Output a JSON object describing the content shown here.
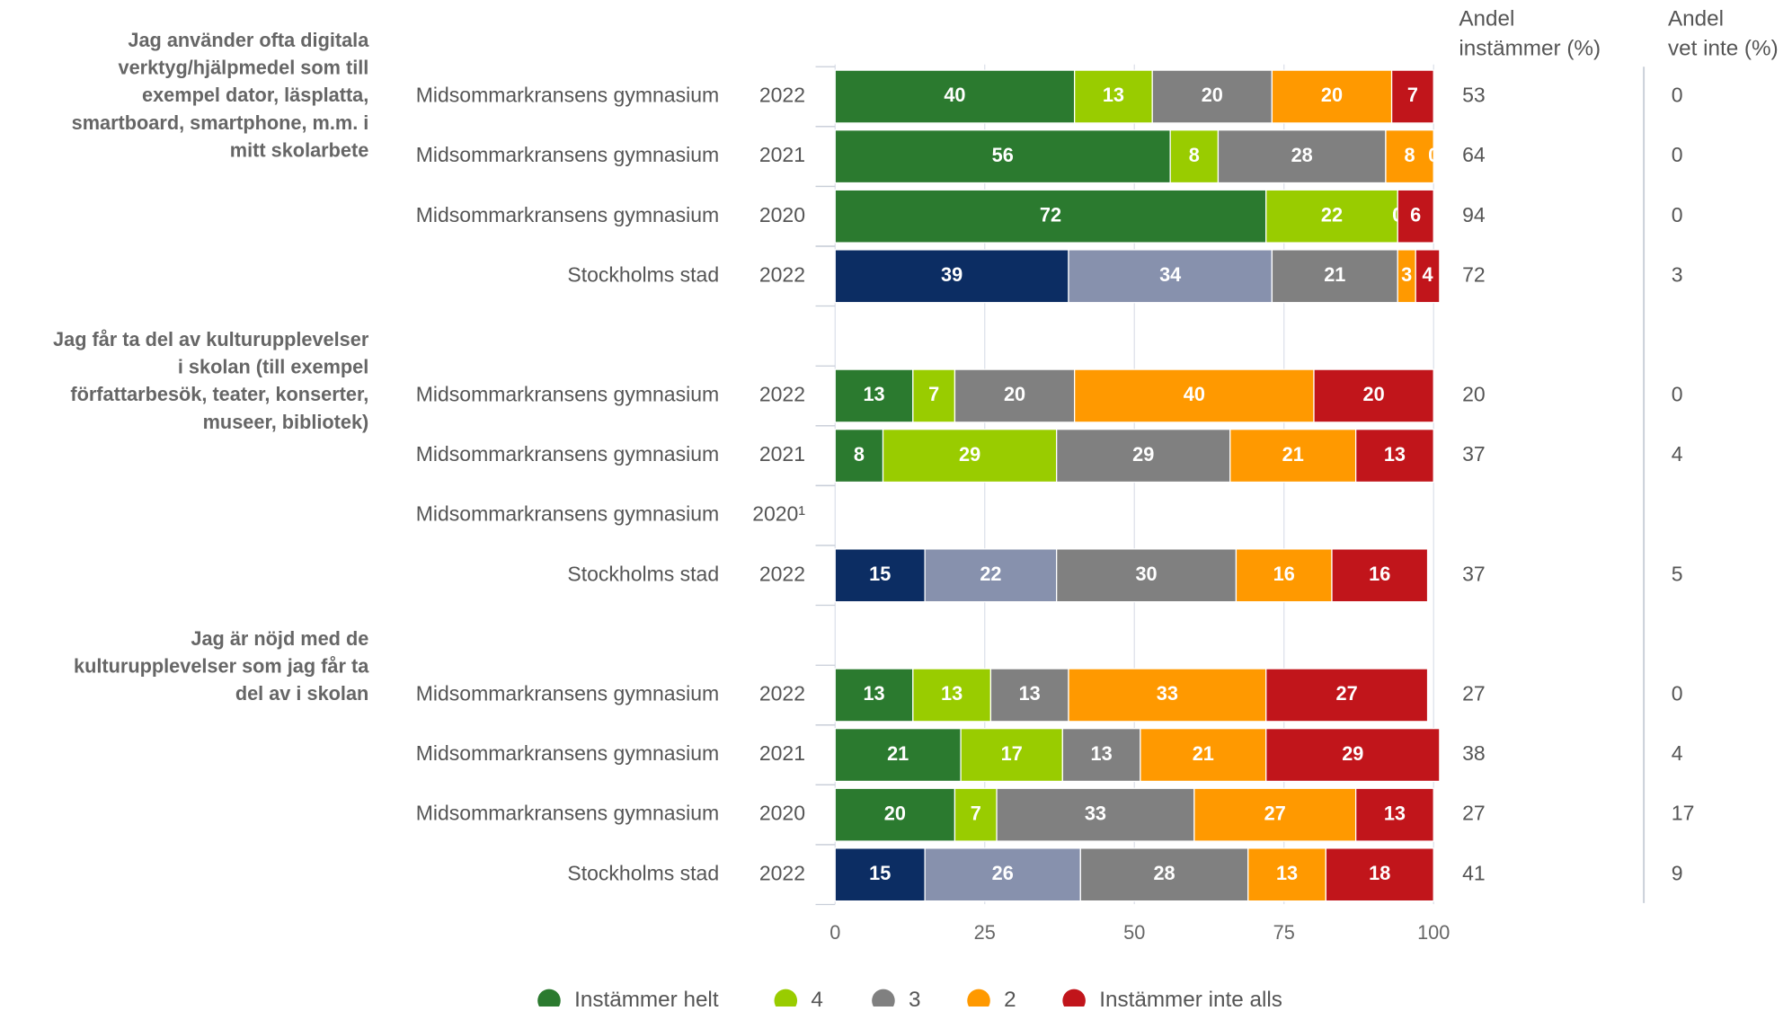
{
  "chart_data": {
    "type": "bar",
    "orientation": "horizontal",
    "stacked": true,
    "xlim": [
      0,
      100
    ],
    "xticks": [
      0,
      25,
      50,
      75,
      100
    ],
    "grid": true,
    "legend": "bottom",
    "column_headers": [
      [
        "Andel",
        "instämmer (%)"
      ],
      [
        "Andel",
        "vet inte (%)"
      ]
    ],
    "series": [
      {
        "name": "Instämmer helt",
        "color": "#2b7a2f"
      },
      {
        "name": "4",
        "color": "#99cc00"
      },
      {
        "name": "3",
        "color": "#808080"
      },
      {
        "name": "2",
        "color": "#ff9900"
      },
      {
        "name": "Instämmer inte alls",
        "color": "#c1151b"
      }
    ],
    "groups": [
      {
        "title": [
          "Jag använder ofta digitala",
          "verktyg/hjälpmedel som till",
          "exempel dator, läsplatta,",
          "smartboard, smartphone, m.m. i",
          "mitt skolarbete"
        ],
        "rows": [
          {
            "label": "Midsommarkransens gymnasium",
            "year": "2022",
            "values": [
              40,
              13,
              20,
              20,
              7
            ],
            "colors": [
              "#2b7a2f",
              "#99cc00",
              "#808080",
              "#ff9900",
              "#c1151b"
            ],
            "andel": 53,
            "vet_inte": 0
          },
          {
            "label": "Midsommarkransens gymnasium",
            "year": "2021",
            "values": [
              56,
              8,
              28,
              8,
              0
            ],
            "colors": [
              "#2b7a2f",
              "#99cc00",
              "#808080",
              "#ff9900",
              "#c1151b"
            ],
            "andel": 64,
            "vet_inte": 0
          },
          {
            "label": "Midsommarkransens gymnasium",
            "year": "2020",
            "values": [
              72,
              22,
              0,
              0,
              6
            ],
            "colors": [
              "#2b7a2f",
              "#99cc00",
              "#808080",
              "#ff9900",
              "#c1151b"
            ],
            "andel": 94,
            "vet_inte": 0
          },
          {
            "label": "Stockholms stad",
            "year": "2022",
            "values": [
              39,
              34,
              21,
              3,
              4
            ],
            "colors": [
              "#0c2d63",
              "#8791ad",
              "#808080",
              "#ff9900",
              "#c1151b"
            ],
            "andel": 72,
            "vet_inte": 3
          }
        ]
      },
      {
        "title": [
          "Jag får ta del av kulturupplevelser",
          "i skolan (till exempel",
          "författarbesök, teater, konserter,",
          "museer, bibliotek)"
        ],
        "rows": [
          {
            "label": "Midsommarkransens gymnasium",
            "year": "2022",
            "values": [
              13,
              7,
              20,
              40,
              20
            ],
            "colors": [
              "#2b7a2f",
              "#99cc00",
              "#808080",
              "#ff9900",
              "#c1151b"
            ],
            "andel": 20,
            "vet_inte": 0
          },
          {
            "label": "Midsommarkransens gymnasium",
            "year": "2021",
            "values": [
              8,
              29,
              29,
              21,
              13
            ],
            "colors": [
              "#2b7a2f",
              "#99cc00",
              "#808080",
              "#ff9900",
              "#c1151b"
            ],
            "andel": 37,
            "vet_inte": 4
          },
          {
            "label": "Midsommarkransens gymnasium",
            "year": "2020¹"
          },
          {
            "label": "Stockholms stad",
            "year": "2022",
            "values": [
              15,
              22,
              30,
              16,
              16
            ],
            "colors": [
              "#0c2d63",
              "#8791ad",
              "#808080",
              "#ff9900",
              "#c1151b"
            ],
            "andel": 37,
            "vet_inte": 5
          }
        ]
      },
      {
        "title": [
          "Jag är nöjd med de",
          "kulturupplevelser som jag får ta",
          "del av i skolan"
        ],
        "rows": [
          {
            "label": "Midsommarkransens gymnasium",
            "year": "2022",
            "values": [
              13,
              13,
              13,
              33,
              27
            ],
            "colors": [
              "#2b7a2f",
              "#99cc00",
              "#808080",
              "#ff9900",
              "#c1151b"
            ],
            "andel": 27,
            "vet_inte": 0
          },
          {
            "label": "Midsommarkransens gymnasium",
            "year": "2021",
            "values": [
              21,
              17,
              13,
              21,
              29
            ],
            "colors": [
              "#2b7a2f",
              "#99cc00",
              "#808080",
              "#ff9900",
              "#c1151b"
            ],
            "andel": 38,
            "vet_inte": 4
          },
          {
            "label": "Midsommarkransens gymnasium",
            "year": "2020",
            "values": [
              20,
              7,
              33,
              27,
              13
            ],
            "colors": [
              "#2b7a2f",
              "#99cc00",
              "#808080",
              "#ff9900",
              "#c1151b"
            ],
            "andel": 27,
            "vet_inte": 17
          },
          {
            "label": "Stockholms stad",
            "year": "2022",
            "values": [
              15,
              26,
              28,
              13,
              18
            ],
            "colors": [
              "#0c2d63",
              "#8791ad",
              "#808080",
              "#ff9900",
              "#c1151b"
            ],
            "andel": 41,
            "vet_inte": 9
          }
        ]
      }
    ]
  }
}
